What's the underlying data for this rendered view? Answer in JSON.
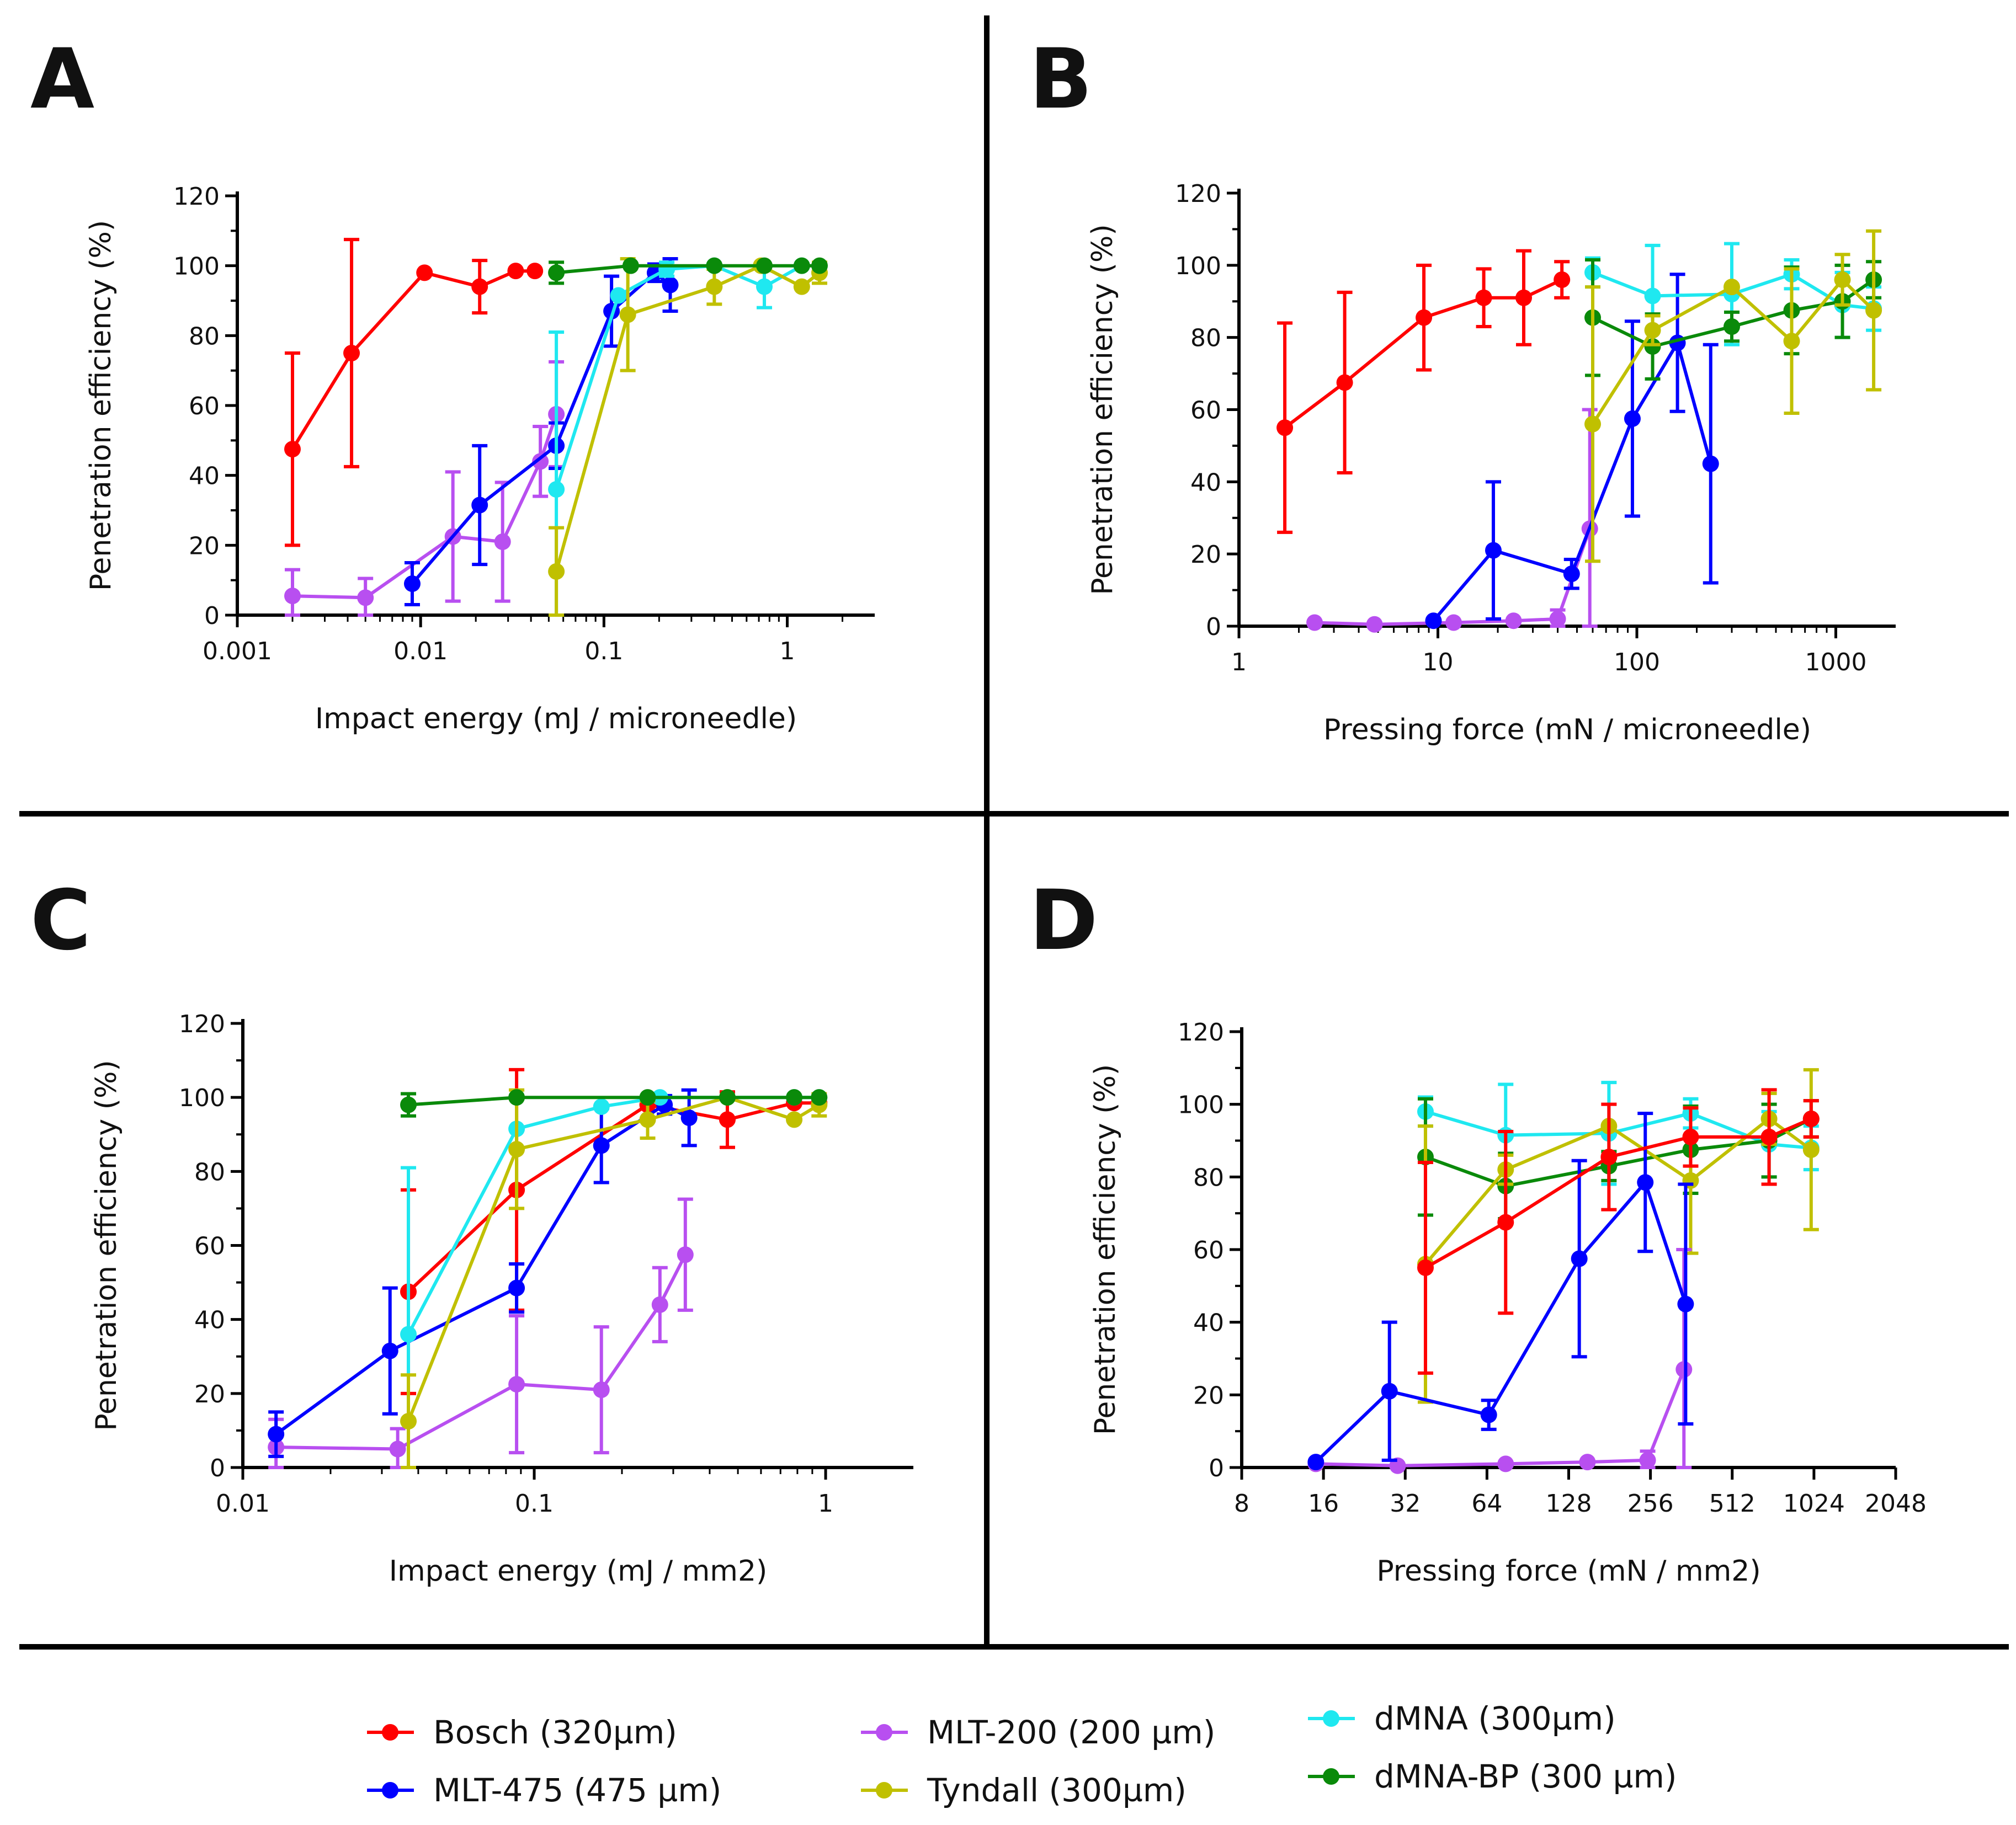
{
  "colors": {
    "Bosch": "#ff0000",
    "MLT-475": "#0000ff",
    "MLT-200": "#b84ff0",
    "Tyndall": "#c0c000",
    "dMNA": "#1fe8f0",
    "dMNA-BP": "#0a8a0a"
  },
  "legend": [
    {
      "key": "Bosch",
      "label": "Bosch (320µm)"
    },
    {
      "key": "MLT-475",
      "label": "MLT-475 (475 µm)"
    },
    {
      "key": "MLT-200",
      "label": "MLT-200 (200 µm)"
    },
    {
      "key": "Tyndall",
      "label": "Tyndall (300µm)"
    },
    {
      "key": "dMNA",
      "label": "dMNA (300µm)"
    },
    {
      "key": "dMNA-BP",
      "label": "dMNA-BP (300 µm)"
    }
  ],
  "chart_data": [
    {
      "panel": "A",
      "type": "line",
      "xscale": "log",
      "xlim": [
        0.001,
        3
      ],
      "ylim": [
        0,
        120
      ],
      "xticks": [
        0.001,
        0.01,
        0.1,
        1
      ],
      "xtick_labels": [
        "0.001",
        "0.01",
        "0.1",
        "1"
      ],
      "yticks": [
        0,
        20,
        40,
        60,
        80,
        100,
        120
      ],
      "xlabel": "Impact energy (mJ / microneedle)",
      "ylabel": "Penetration efficiency (%)",
      "series": [
        {
          "name": "Bosch",
          "x": [
            0.002,
            0.0042,
            0.0105,
            0.021,
            0.033,
            0.042
          ],
          "y": [
            47.5,
            75,
            98,
            94,
            98.5,
            98.5
          ],
          "err": [
            27.5,
            32.5,
            0,
            7.5,
            0,
            0
          ]
        },
        {
          "name": "MLT-200",
          "x": [
            0.002,
            0.005,
            0.015,
            0.028,
            0.045,
            0.055
          ],
          "y": [
            5.5,
            5,
            22.5,
            21,
            44,
            57.5
          ],
          "err": [
            7.5,
            5.5,
            18.5,
            17,
            10,
            15
          ]
        },
        {
          "name": "MLT-475",
          "x": [
            0.009,
            0.021,
            0.055,
            0.11,
            0.19,
            0.23
          ],
          "y": [
            9,
            31.5,
            48.5,
            87,
            98,
            94.5
          ],
          "err": [
            6,
            17,
            6.5,
            10,
            2.5,
            7.5
          ]
        },
        {
          "name": "dMNA",
          "x": [
            0.055,
            0.12,
            0.22,
            0.4,
            0.75,
            1.2
          ],
          "y": [
            36,
            91.5,
            99,
            100,
            94,
            100
          ],
          "err": [
            45,
            0,
            2,
            0,
            6,
            0
          ]
        },
        {
          "name": "Tyndall",
          "x": [
            0.055,
            0.135,
            0.4,
            0.72,
            1.2,
            1.5
          ],
          "y": [
            12.5,
            86,
            94,
            100,
            94,
            98
          ],
          "err": [
            12.5,
            16,
            5,
            0,
            0,
            3
          ]
        },
        {
          "name": "dMNA-BP",
          "x": [
            0.055,
            0.14,
            0.4,
            0.75,
            1.2,
            1.5
          ],
          "y": [
            98,
            100,
            100,
            100,
            100,
            100
          ],
          "err": [
            3,
            0,
            0,
            0,
            0,
            0
          ]
        }
      ]
    },
    {
      "panel": "B",
      "type": "line",
      "xscale": "log",
      "xlim": [
        1,
        2000
      ],
      "ylim": [
        0,
        120
      ],
      "xticks": [
        1,
        10,
        100,
        1000
      ],
      "xtick_labels": [
        "1",
        "10",
        "100",
        "1000"
      ],
      "yticks": [
        0,
        20,
        40,
        60,
        80,
        100,
        120
      ],
      "xlabel": "Pressing force (mN / microneedle)",
      "ylabel": "Penetration efficiency (%)",
      "series": [
        {
          "name": "Bosch",
          "x": [
            1.7,
            3.4,
            8.5,
            17,
            27,
            42
          ],
          "y": [
            55,
            67.5,
            85.5,
            91,
            91,
            96
          ],
          "err": [
            29,
            25,
            14.5,
            8,
            13,
            5
          ]
        },
        {
          "name": "MLT-200",
          "x": [
            2.4,
            4.8,
            12,
            24,
            40,
            58
          ],
          "y": [
            1,
            0.5,
            1,
            1.5,
            2,
            27
          ],
          "err": [
            0,
            0,
            0,
            0,
            2.5,
            33
          ]
        },
        {
          "name": "MLT-475",
          "x": [
            9.5,
            19,
            47,
            95,
            160,
            235
          ],
          "y": [
            1.5,
            21,
            14.5,
            57.5,
            78.5,
            45
          ],
          "err": [
            0,
            19,
            4,
            27,
            19,
            33
          ]
        },
        {
          "name": "dMNA",
          "x": [
            60,
            120,
            300,
            600,
            1080,
            1550
          ],
          "y": [
            98,
            91.5,
            92,
            97.5,
            89,
            88
          ],
          "err": [
            4,
            14,
            14,
            4,
            9,
            6
          ]
        },
        {
          "name": "dMNA-BP",
          "x": [
            60,
            120,
            300,
            600,
            1080,
            1550
          ],
          "y": [
            85.5,
            77.5,
            83,
            87.5,
            90,
            96
          ],
          "err": [
            16,
            9,
            4,
            12,
            10,
            5
          ]
        },
        {
          "name": "Tyndall",
          "x": [
            60,
            120,
            300,
            600,
            1080,
            1550
          ],
          "y": [
            56,
            82,
            94,
            79,
            96,
            87.5
          ],
          "err": [
            38,
            4,
            0,
            20,
            7,
            22
          ]
        }
      ]
    },
    {
      "panel": "C",
      "type": "line",
      "xscale": "log",
      "xlim": [
        0.01,
        2
      ],
      "ylim": [
        0,
        120
      ],
      "xticks": [
        0.01,
        0.1,
        1
      ],
      "xtick_labels": [
        "0.01",
        "0.1",
        "1"
      ],
      "yticks": [
        0,
        20,
        40,
        60,
        80,
        100,
        120
      ],
      "xlabel": "Impact energy (mJ / mm2)",
      "ylabel": "Penetration efficiency (%)",
      "series": [
        {
          "name": "Bosch",
          "x": [
            0.037,
            0.087,
            0.245,
            0.46,
            0.78,
            0.95
          ],
          "y": [
            47.5,
            75,
            98,
            94,
            98.5,
            98.5
          ],
          "err": [
            27.5,
            32.5,
            0,
            7.5,
            0,
            0
          ]
        },
        {
          "name": "MLT-200",
          "x": [
            0.013,
            0.034,
            0.087,
            0.17,
            0.27,
            0.33
          ],
          "y": [
            5.5,
            5,
            22.5,
            21,
            44,
            57.5
          ],
          "err": [
            7.5,
            5.5,
            18.5,
            17,
            10,
            15
          ]
        },
        {
          "name": "MLT-475",
          "x": [
            0.013,
            0.032,
            0.087,
            0.17,
            0.28,
            0.34
          ],
          "y": [
            9,
            31.5,
            48.5,
            87,
            98,
            94.5
          ],
          "err": [
            6,
            17,
            6.5,
            10,
            2.5,
            7.5
          ]
        },
        {
          "name": "dMNA",
          "x": [
            0.037,
            0.087,
            0.17,
            0.27,
            0.78,
            0.95
          ],
          "y": [
            36,
            91.5,
            97.5,
            100,
            100,
            100
          ],
          "err": [
            45,
            0,
            0,
            0,
            0,
            0
          ]
        },
        {
          "name": "Tyndall",
          "x": [
            0.037,
            0.087,
            0.245,
            0.46,
            0.78,
            0.95
          ],
          "y": [
            12.5,
            86,
            94,
            100,
            94,
            98
          ],
          "err": [
            12.5,
            16,
            5,
            0,
            0,
            3
          ]
        },
        {
          "name": "dMNA-BP",
          "x": [
            0.037,
            0.087,
            0.245,
            0.46,
            0.78,
            0.95
          ],
          "y": [
            98,
            100,
            100,
            100,
            100,
            100
          ],
          "err": [
            3,
            0,
            0,
            0,
            0,
            0
          ]
        }
      ]
    },
    {
      "panel": "D",
      "type": "line",
      "xscale": "log2",
      "xlim": [
        8,
        2048
      ],
      "ylim": [
        0,
        120
      ],
      "xticks": [
        8,
        16,
        32,
        64,
        128,
        256,
        512,
        1024,
        2048
      ],
      "xtick_labels": [
        "8",
        "16",
        "32",
        "64",
        "128",
        "256",
        "512",
        "1024",
        "2048"
      ],
      "yticks": [
        0,
        20,
        40,
        60,
        80,
        100,
        120
      ],
      "xlabel": "Pressing force (mN / mm2)",
      "ylabel": "Penetration efficiency (%)",
      "series": [
        {
          "name": "dMNA",
          "x": [
            38,
            75,
            180,
            360,
            700,
            1000
          ],
          "y": [
            98,
            91.5,
            92,
            97.5,
            89,
            88
          ],
          "err": [
            4,
            14,
            14,
            4,
            9,
            6
          ]
        },
        {
          "name": "dMNA-BP",
          "x": [
            38,
            75,
            180,
            360,
            700,
            1000
          ],
          "y": [
            85.5,
            77.5,
            83,
            87.5,
            90,
            96
          ],
          "err": [
            16,
            9,
            4,
            12,
            10,
            5
          ]
        },
        {
          "name": "Tyndall",
          "x": [
            38,
            75,
            180,
            360,
            700,
            1000
          ],
          "y": [
            56,
            82,
            94,
            79,
            96,
            87.5
          ],
          "err": [
            38,
            4,
            0,
            20,
            7,
            22
          ]
        },
        {
          "name": "MLT-200",
          "x": [
            15,
            30,
            75,
            150,
            250,
            340
          ],
          "y": [
            1,
            0.5,
            1,
            1.5,
            2,
            27
          ],
          "err": [
            0,
            0,
            0,
            0,
            2.5,
            33
          ]
        },
        {
          "name": "MLT-475",
          "x": [
            15,
            28,
            65,
            140,
            245,
            345
          ],
          "y": [
            1.5,
            21,
            14.5,
            57.5,
            78.5,
            45
          ],
          "err": [
            0,
            19,
            4,
            27,
            19,
            33
          ]
        },
        {
          "name": "Bosch",
          "x": [
            38,
            75,
            180,
            360,
            700,
            1000
          ],
          "y": [
            55,
            67.5,
            85.5,
            91,
            91,
            96
          ],
          "err": [
            29,
            25,
            14.5,
            8,
            13,
            5
          ]
        }
      ]
    }
  ]
}
